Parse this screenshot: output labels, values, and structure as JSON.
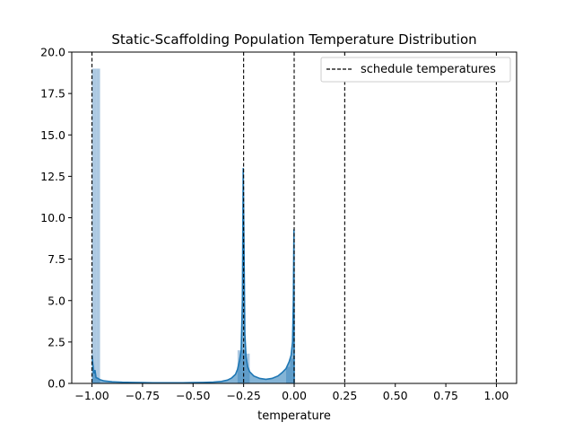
{
  "chart_data": {
    "type": "histogram",
    "title": "Static-Scaffolding Population Temperature Distribution",
    "xlabel": "temperature",
    "ylabel": "",
    "xlim": [
      -1.1,
      1.1
    ],
    "ylim": [
      0,
      20
    ],
    "x_ticks": [
      "−1.00",
      "−0.75",
      "−0.50",
      "−0.25",
      "0.00",
      "0.25",
      "0.50",
      "0.75",
      "1.00"
    ],
    "x_tick_values": [
      -1.0,
      -0.75,
      -0.5,
      -0.25,
      0.0,
      0.25,
      0.5,
      0.75,
      1.0
    ],
    "y_ticks": [
      "0.0",
      "2.5",
      "5.0",
      "7.5",
      "10.0",
      "12.5",
      "15.0",
      "17.5",
      "20.0"
    ],
    "y_tick_values": [
      0,
      2.5,
      5.0,
      7.5,
      10.0,
      12.5,
      15.0,
      17.5,
      20.0
    ],
    "histogram": {
      "color": "#a9c6e0",
      "bins": [
        {
          "x0": -1.0,
          "x1": -0.98,
          "density": 19.0
        },
        {
          "x0": -0.98,
          "x1": -0.96,
          "density": 19.0
        },
        {
          "x0": -0.28,
          "x1": -0.26,
          "density": 2.0
        },
        {
          "x0": -0.26,
          "x1": -0.24,
          "density": 2.0
        },
        {
          "x0": -0.24,
          "x1": -0.22,
          "density": 1.8
        },
        {
          "x0": -0.04,
          "x1": -0.02,
          "density": 1.0
        },
        {
          "x0": -0.02,
          "x1": 0.0,
          "density": 1.5
        }
      ]
    },
    "kde": {
      "color": "#1f77b4",
      "points": [
        [
          -1.0,
          1.7
        ],
        [
          -0.995,
          1.1
        ],
        [
          -0.99,
          0.6
        ],
        [
          -0.985,
          0.8
        ],
        [
          -0.98,
          0.35
        ],
        [
          -0.97,
          0.3
        ],
        [
          -0.96,
          0.22
        ],
        [
          -0.94,
          0.15
        ],
        [
          -0.9,
          0.1
        ],
        [
          -0.85,
          0.07
        ],
        [
          -0.8,
          0.06
        ],
        [
          -0.75,
          0.05
        ],
        [
          -0.7,
          0.04
        ],
        [
          -0.65,
          0.04
        ],
        [
          -0.6,
          0.04
        ],
        [
          -0.55,
          0.04
        ],
        [
          -0.5,
          0.05
        ],
        [
          -0.45,
          0.06
        ],
        [
          -0.4,
          0.08
        ],
        [
          -0.36,
          0.12
        ],
        [
          -0.33,
          0.2
        ],
        [
          -0.31,
          0.32
        ],
        [
          -0.29,
          0.55
        ],
        [
          -0.28,
          0.85
        ],
        [
          -0.27,
          1.4
        ],
        [
          -0.262,
          2.0
        ],
        [
          -0.256,
          5.0
        ],
        [
          -0.252,
          13.0
        ],
        [
          -0.248,
          8.0
        ],
        [
          -0.244,
          3.0
        ],
        [
          -0.238,
          1.6
        ],
        [
          -0.23,
          1.0
        ],
        [
          -0.22,
          0.7
        ],
        [
          -0.2,
          0.45
        ],
        [
          -0.17,
          0.3
        ],
        [
          -0.14,
          0.25
        ],
        [
          -0.11,
          0.3
        ],
        [
          -0.08,
          0.45
        ],
        [
          -0.06,
          0.65
        ],
        [
          -0.04,
          0.9
        ],
        [
          -0.025,
          1.3
        ],
        [
          -0.015,
          1.7
        ],
        [
          -0.008,
          2.5
        ],
        [
          -0.004,
          5.0
        ],
        [
          -0.001,
          9.3
        ],
        [
          0.0,
          0.0
        ]
      ]
    },
    "vlines": {
      "name": "schedule temperatures",
      "x": [
        -1.0,
        -0.25,
        0.0,
        0.25,
        1.0
      ],
      "color": "#000000",
      "style": "dashed"
    },
    "legend_position": "upper right",
    "grid": false
  }
}
